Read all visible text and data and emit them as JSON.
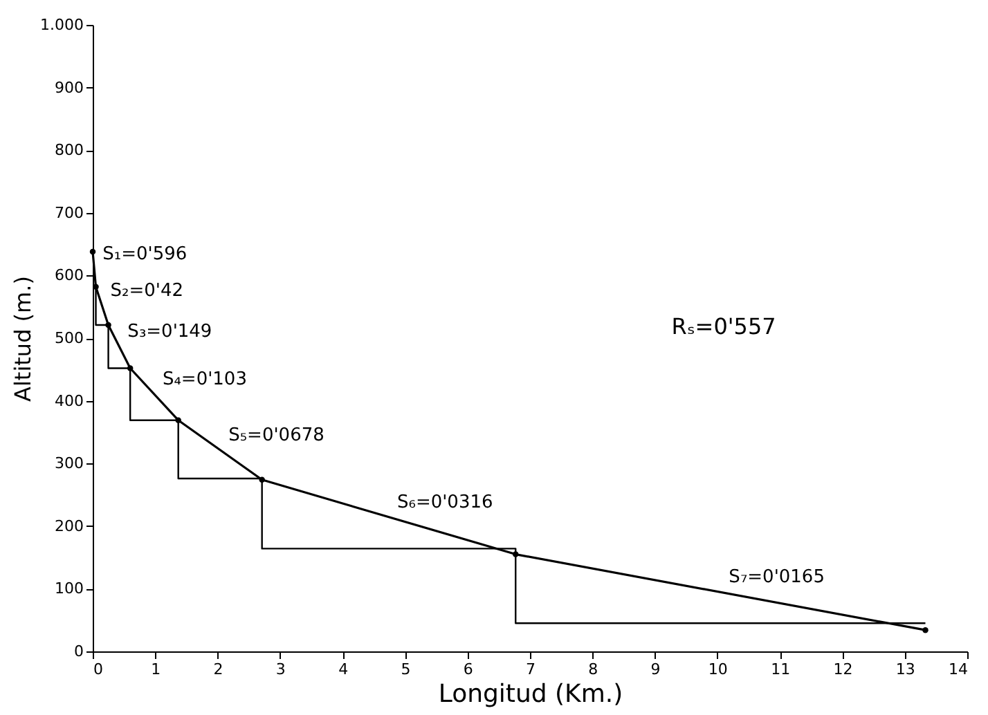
{
  "chart_data": {
    "type": "line",
    "xlabel": "Longitud (Km.)",
    "ylabel": "Altitud (m.)",
    "xlim": [
      0,
      14
    ],
    "ylim": [
      0,
      1000
    ],
    "xticks": [
      0,
      1,
      2,
      3,
      4,
      5,
      6,
      7,
      8,
      9,
      10,
      11,
      12,
      13,
      14
    ],
    "yticks": [
      0,
      100,
      200,
      300,
      400,
      500,
      600,
      700,
      800,
      900,
      {
        "value": 1000,
        "label": "1.000"
      }
    ],
    "grid": false,
    "series": [
      {
        "type": "line",
        "color": "#000000",
        "marker": "circle",
        "x": [
          0,
          0.05,
          0.25,
          0.6,
          1.37,
          2.71,
          6.77,
          13.33
        ],
        "values": [
          638,
          582,
          521,
          452,
          369,
          274,
          155,
          34
        ]
      },
      {
        "type": "step",
        "color": "#000000",
        "x": [
          0.05,
          0.25,
          0.6,
          1.37,
          2.71,
          6.77,
          13.33
        ],
        "values": [
          582,
          521,
          452,
          369,
          276,
          164,
          45
        ]
      }
    ],
    "annotations": [
      {
        "text": "S₁=0'596",
        "x": 0.025,
        "y": 610
      },
      {
        "text": "S₂=0'42",
        "x": 0.15,
        "y": 551.5
      },
      {
        "text": "S₃=0'149",
        "x": 0.425,
        "y": 486.5
      },
      {
        "text": "S₄=0'103",
        "x": 0.985,
        "y": 410.5
      },
      {
        "text": "S₅=0'0678",
        "x": 2.04,
        "y": 321.5
      },
      {
        "text": "S₆=0'0316",
        "x": 4.74,
        "y": 214.5
      },
      {
        "text": "S₇=0'0165",
        "x": 10.05,
        "y": 94.5
      },
      "Rₛ=0'557"
    ]
  }
}
